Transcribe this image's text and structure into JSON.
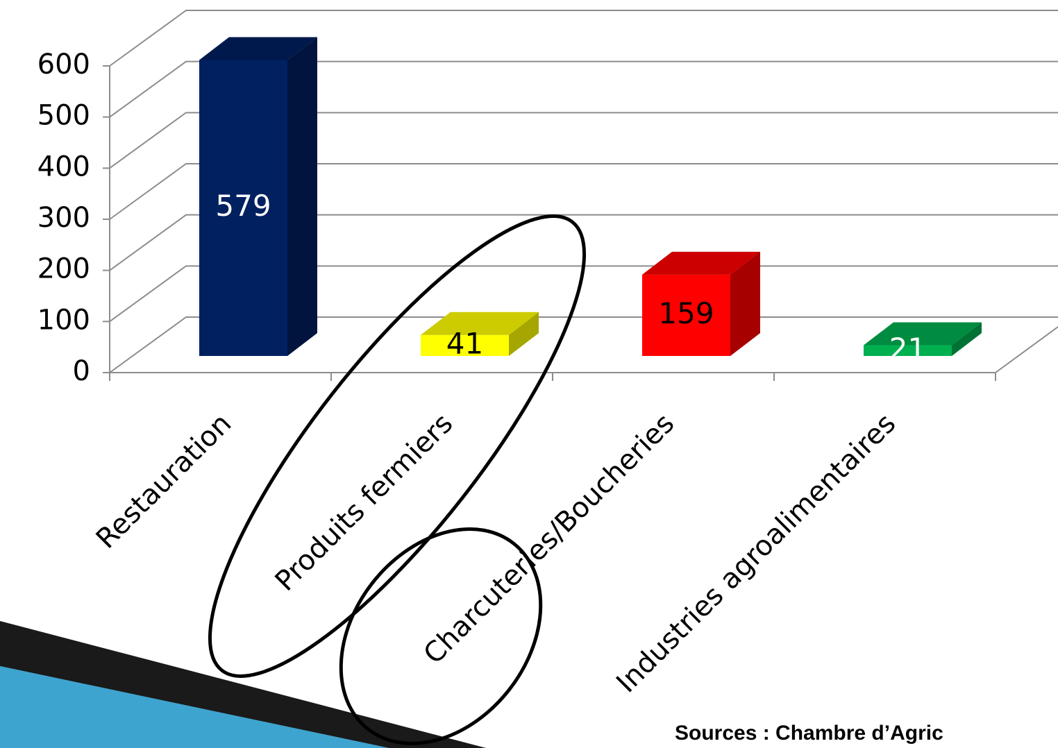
{
  "chart_data": {
    "type": "bar",
    "categories": [
      "Restauration",
      "Produits fermiers",
      "Charcuteries/Boucheries",
      "Industries agroalimentaires"
    ],
    "series": [
      {
        "values": [
          579,
          41,
          159,
          21
        ],
        "colors": [
          "#002060",
          "#ffff00",
          "#ff0000",
          "#00b050"
        ],
        "label_colors": [
          "#ffffff",
          "#000000",
          "#000000",
          "#ffffff"
        ]
      }
    ],
    "ylim": [
      0,
      600
    ],
    "yticks": [
      0,
      100,
      200,
      300,
      400,
      500,
      600
    ],
    "grid": true,
    "source": "Sources : Chambre d’Agric"
  }
}
